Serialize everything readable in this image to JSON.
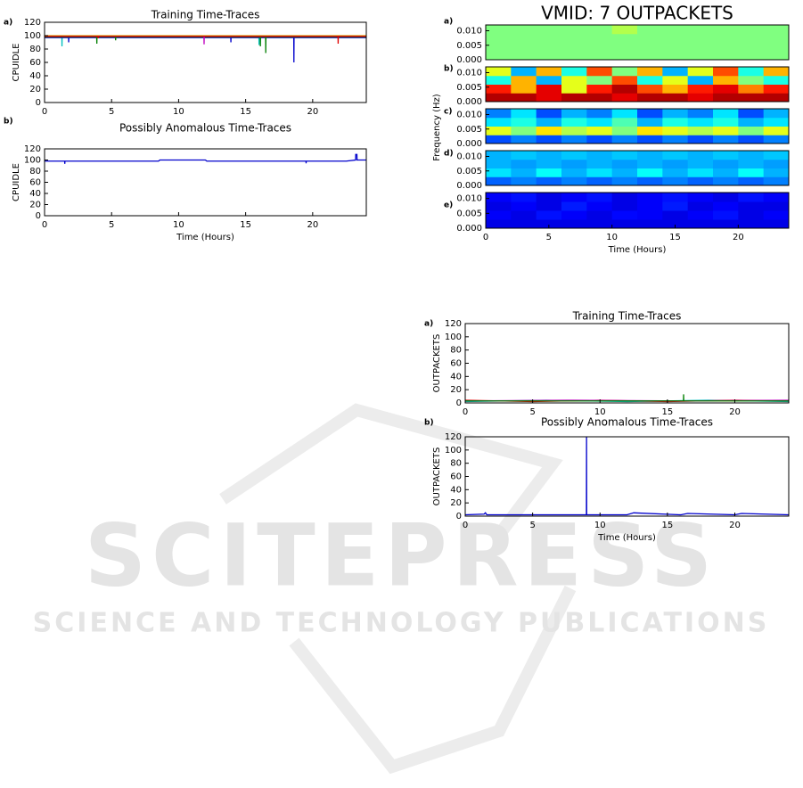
{
  "chart_data": [
    {
      "type": "line",
      "panel": "a)",
      "title": "Training Time-Traces",
      "ylabel": "CPUIDLE",
      "xlim": [
        0,
        24
      ],
      "ylim": [
        0,
        120
      ],
      "xticks": [
        0,
        5,
        10,
        15,
        20
      ],
      "yticks": [
        0,
        20,
        40,
        60,
        80,
        100,
        120
      ],
      "series": [
        {
          "color": "#d4b000",
          "x": [
            0,
            24
          ],
          "values": [
            100,
            100
          ]
        },
        {
          "color": "#00bfbf",
          "x": [
            0,
            1.29,
            1.3,
            1.31,
            15.99,
            16,
            16.01,
            24
          ],
          "values": [
            98,
            98,
            84,
            98,
            98,
            86,
            98,
            98
          ]
        },
        {
          "color": "#0000cc",
          "x": [
            0,
            1.79,
            1.8,
            1.81,
            13.89,
            13.9,
            13.91,
            18.59,
            18.6,
            18.61,
            24
          ],
          "values": [
            97,
            97,
            90,
            97,
            97,
            90,
            97,
            97,
            60,
            97,
            97
          ]
        },
        {
          "color": "#007f00",
          "x": [
            0,
            3.89,
            3.9,
            3.91,
            5.29,
            5.3,
            5.31,
            16.09,
            16.1,
            16.11,
            16.49,
            16.5,
            16.51,
            24
          ],
          "values": [
            98,
            98,
            88,
            98,
            98,
            93,
            98,
            98,
            84,
            98,
            98,
            74,
            98,
            98
          ]
        },
        {
          "color": "#bf00bf",
          "x": [
            0,
            11.89,
            11.9,
            11.91,
            24
          ],
          "values": [
            99,
            99,
            87,
            99,
            99
          ]
        },
        {
          "color": "#e00000",
          "x": [
            0,
            3.99,
            4,
            4.01,
            21.89,
            21.9,
            21.91,
            24
          ],
          "values": [
            99,
            99,
            96,
            99,
            99,
            88,
            99,
            99
          ]
        }
      ]
    },
    {
      "type": "line",
      "panel": "b)",
      "title": "Possibly Anomalous Time-Traces",
      "ylabel": "CPUIDLE",
      "xlabel": "Time (Hours)",
      "xlim": [
        0,
        24
      ],
      "ylim": [
        0,
        120
      ],
      "xticks": [
        0,
        5,
        10,
        15,
        20
      ],
      "yticks": [
        0,
        20,
        40,
        60,
        80,
        100,
        120
      ],
      "series": [
        {
          "color": "#0000cc",
          "x": [
            0,
            1.5,
            1.51,
            1.52,
            8.5,
            8.6,
            12,
            12.1,
            19.5,
            19.51,
            19.52,
            22.5,
            23.2,
            23.21,
            23.3,
            23.31,
            24
          ],
          "values": [
            98,
            98,
            93,
            98,
            98,
            100,
            100,
            98,
            98,
            94,
            98,
            98,
            100,
            110,
            110,
            100,
            100
          ]
        }
      ]
    },
    {
      "type": "heatmap",
      "panel": "a)",
      "title": "VMID: 7 OUTPACKETS",
      "xlim": [
        0,
        24
      ],
      "ylim": [
        0,
        0.012
      ],
      "yticks": [
        {
          "value": 0,
          "label": "0.000"
        },
        {
          "value": 0.005,
          "label": "0.005"
        },
        {
          "value": 0.01,
          "label": "0.010"
        }
      ],
      "z": [
        [
          0.5,
          0.5,
          0.5,
          0.5,
          0.5,
          0.5,
          0.5,
          0.5,
          0.5,
          0.5,
          0.5,
          0.5
        ],
        [
          0.5,
          0.5,
          0.5,
          0.5,
          0.5,
          0.5,
          0.5,
          0.5,
          0.5,
          0.5,
          0.5,
          0.5
        ],
        [
          0.5,
          0.5,
          0.5,
          0.5,
          0.5,
          0.5,
          0.5,
          0.5,
          0.5,
          0.5,
          0.5,
          0.5
        ],
        [
          0.5,
          0.5,
          0.5,
          0.5,
          0.5,
          0.55,
          0.5,
          0.5,
          0.5,
          0.5,
          0.5,
          0.5
        ]
      ]
    },
    {
      "type": "heatmap",
      "panel": "b)",
      "xlim": [
        0,
        24
      ],
      "ylim": [
        0,
        0.012
      ],
      "yticks": [
        {
          "value": 0,
          "label": "0.000"
        },
        {
          "value": 0.005,
          "label": "0.005"
        },
        {
          "value": 0.01,
          "label": "0.010"
        }
      ],
      "z": [
        [
          0.95,
          0.95,
          0.9,
          0.95,
          0.95,
          0.9,
          0.95,
          0.95,
          0.9,
          0.95,
          0.95,
          0.95
        ],
        [
          0.85,
          0.7,
          0.9,
          0.6,
          0.85,
          0.95,
          0.8,
          0.7,
          0.85,
          0.9,
          0.75,
          0.85
        ],
        [
          0.4,
          0.7,
          0.3,
          0.6,
          0.5,
          0.8,
          0.4,
          0.6,
          0.3,
          0.7,
          0.5,
          0.4
        ],
        [
          0.6,
          0.3,
          0.7,
          0.4,
          0.8,
          0.5,
          0.7,
          0.3,
          0.6,
          0.8,
          0.4,
          0.7
        ]
      ]
    },
    {
      "type": "heatmap",
      "panel": "c)",
      "ylabel": "Frequency (Hz)",
      "xlim": [
        0,
        24
      ],
      "ylim": [
        0,
        0.012
      ],
      "yticks": [
        {
          "value": 0,
          "label": "0.000"
        },
        {
          "value": 0.005,
          "label": "0.005"
        },
        {
          "value": 0.01,
          "label": "0.010"
        }
      ],
      "z": [
        [
          0.2,
          0.25,
          0.2,
          0.25,
          0.2,
          0.25,
          0.2,
          0.25,
          0.2,
          0.25,
          0.2,
          0.25
        ],
        [
          0.6,
          0.5,
          0.65,
          0.55,
          0.6,
          0.5,
          0.65,
          0.6,
          0.55,
          0.6,
          0.5,
          0.6
        ],
        [
          0.35,
          0.4,
          0.3,
          0.4,
          0.35,
          0.45,
          0.3,
          0.4,
          0.35,
          0.4,
          0.3,
          0.35
        ],
        [
          0.25,
          0.35,
          0.2,
          0.3,
          0.25,
          0.35,
          0.2,
          0.3,
          0.25,
          0.35,
          0.2,
          0.3
        ]
      ]
    },
    {
      "type": "heatmap",
      "panel": "d)",
      "xlim": [
        0,
        24
      ],
      "ylim": [
        0,
        0.012
      ],
      "yticks": [
        {
          "value": 0,
          "label": "0.000"
        },
        {
          "value": 0.005,
          "label": "0.005"
        },
        {
          "value": 0.01,
          "label": "0.010"
        }
      ],
      "z": [
        [
          0.22,
          0.25,
          0.22,
          0.25,
          0.22,
          0.25,
          0.22,
          0.25,
          0.22,
          0.25,
          0.22,
          0.25
        ],
        [
          0.35,
          0.3,
          0.38,
          0.3,
          0.35,
          0.3,
          0.38,
          0.3,
          0.35,
          0.3,
          0.38,
          0.3
        ],
        [
          0.3,
          0.28,
          0.3,
          0.28,
          0.3,
          0.28,
          0.3,
          0.28,
          0.3,
          0.28,
          0.3,
          0.28
        ],
        [
          0.3,
          0.32,
          0.3,
          0.32,
          0.3,
          0.32,
          0.3,
          0.32,
          0.3,
          0.32,
          0.3,
          0.32
        ]
      ]
    },
    {
      "type": "heatmap",
      "panel": "e)",
      "xlabel": "Time (Hours)",
      "xlim": [
        0,
        24
      ],
      "ylim": [
        0,
        0.012
      ],
      "xticks": [
        0,
        5,
        10,
        15,
        20
      ],
      "yticks": [
        {
          "value": 0,
          "label": "0.000"
        },
        {
          "value": 0.005,
          "label": "0.005"
        },
        {
          "value": 0.01,
          "label": "0.010"
        }
      ],
      "z": [
        [
          0.1,
          0.1,
          0.1,
          0.1,
          0.1,
          0.1,
          0.1,
          0.1,
          0.1,
          0.1,
          0.1,
          0.1
        ],
        [
          0.12,
          0.1,
          0.14,
          0.12,
          0.1,
          0.13,
          0.12,
          0.1,
          0.12,
          0.14,
          0.1,
          0.12
        ],
        [
          0.1,
          0.12,
          0.1,
          0.15,
          0.12,
          0.1,
          0.12,
          0.15,
          0.1,
          0.12,
          0.1,
          0.1
        ],
        [
          0.12,
          0.14,
          0.1,
          0.12,
          0.14,
          0.1,
          0.12,
          0.14,
          0.12,
          0.1,
          0.14,
          0.12
        ]
      ]
    },
    {
      "type": "line",
      "panel": "a)",
      "title": "Training Time-Traces",
      "ylabel": "OUTPACKETS",
      "xlim": [
        0,
        24
      ],
      "ylim": [
        0,
        120
      ],
      "xticks": [
        0,
        5,
        10,
        15,
        20
      ],
      "yticks": [
        0,
        20,
        40,
        60,
        80,
        100,
        120
      ],
      "series": [
        {
          "color": "#d4b000",
          "x": [
            0,
            24
          ],
          "values": [
            3,
            3
          ]
        },
        {
          "color": "#00bfbf",
          "x": [
            0,
            6,
            12,
            18,
            24
          ],
          "values": [
            2,
            4,
            2,
            4,
            2
          ]
        },
        {
          "color": "#e00000",
          "x": [
            0,
            5,
            10,
            15,
            20,
            24
          ],
          "values": [
            4,
            2,
            4,
            2,
            4,
            3
          ]
        },
        {
          "color": "#bf00bf",
          "x": [
            0,
            8,
            16,
            24
          ],
          "values": [
            3,
            4,
            3,
            4
          ]
        },
        {
          "color": "#007f00",
          "x": [
            0,
            16.19,
            16.2,
            16.21,
            24
          ],
          "values": [
            3,
            3,
            13,
            3,
            3
          ]
        }
      ]
    },
    {
      "type": "line",
      "panel": "b)",
      "title": "Possibly Anomalous Time-Traces",
      "ylabel": "OUTPACKETS",
      "xlabel": "Time (Hours)",
      "xlim": [
        0,
        24
      ],
      "ylim": [
        0,
        120
      ],
      "xticks": [
        0,
        5,
        10,
        15,
        20
      ],
      "yticks": [
        0,
        20,
        40,
        60,
        80,
        100,
        120
      ],
      "series": [
        {
          "color": "#0000cc",
          "x": [
            0,
            1.4,
            1.5,
            1.6,
            8.99,
            9,
            9.01,
            12,
            12.5,
            16,
            16.5,
            20,
            20.5,
            24
          ],
          "values": [
            2,
            3,
            5,
            2,
            2,
            120,
            2,
            2,
            5,
            2,
            4,
            2,
            4,
            2
          ]
        }
      ]
    }
  ],
  "watermark": {
    "title": "SCITEPRESS",
    "subtitle": "SCIENCE AND TECHNOLOGY PUBLICATIONS"
  }
}
